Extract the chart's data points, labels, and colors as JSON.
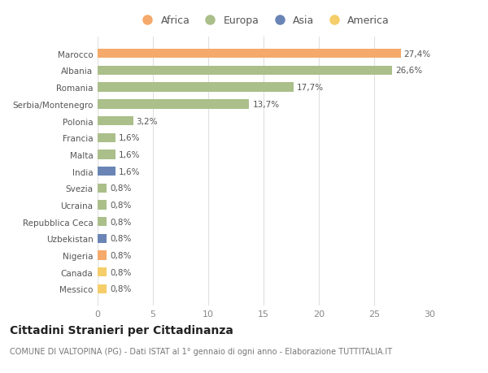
{
  "countries": [
    "Marocco",
    "Albania",
    "Romania",
    "Serbia/Montenegro",
    "Polonia",
    "Francia",
    "Malta",
    "India",
    "Svezia",
    "Ucraina",
    "Repubblica Ceca",
    "Uzbekistan",
    "Nigeria",
    "Canada",
    "Messico"
  ],
  "values": [
    27.4,
    26.6,
    17.7,
    13.7,
    3.2,
    1.6,
    1.6,
    1.6,
    0.8,
    0.8,
    0.8,
    0.8,
    0.8,
    0.8,
    0.8
  ],
  "labels": [
    "27,4%",
    "26,6%",
    "17,7%",
    "13,7%",
    "3,2%",
    "1,6%",
    "1,6%",
    "1,6%",
    "0,8%",
    "0,8%",
    "0,8%",
    "0,8%",
    "0,8%",
    "0,8%",
    "0,8%"
  ],
  "continents": [
    "Africa",
    "Europa",
    "Europa",
    "Europa",
    "Europa",
    "Europa",
    "Europa",
    "Asia",
    "Europa",
    "Europa",
    "Europa",
    "Asia",
    "Africa",
    "America",
    "America"
  ],
  "colors": {
    "Africa": "#F5A96A",
    "Europa": "#AABF8A",
    "Asia": "#6A85B5",
    "America": "#F5CE6A"
  },
  "xlim": [
    0,
    30
  ],
  "xticks": [
    0,
    5,
    10,
    15,
    20,
    25,
    30
  ],
  "title": "Cittadini Stranieri per Cittadinanza",
  "subtitle": "COMUNE DI VALTOPINA (PG) - Dati ISTAT al 1° gennaio di ogni anno - Elaborazione TUTTITALIA.IT",
  "background_color": "#ffffff",
  "grid_color": "#e0e0e0",
  "bar_height": 0.55,
  "label_fontsize": 7.5,
  "ytick_fontsize": 7.5,
  "xtick_fontsize": 8,
  "title_fontsize": 10,
  "subtitle_fontsize": 7,
  "legend_fontsize": 9
}
